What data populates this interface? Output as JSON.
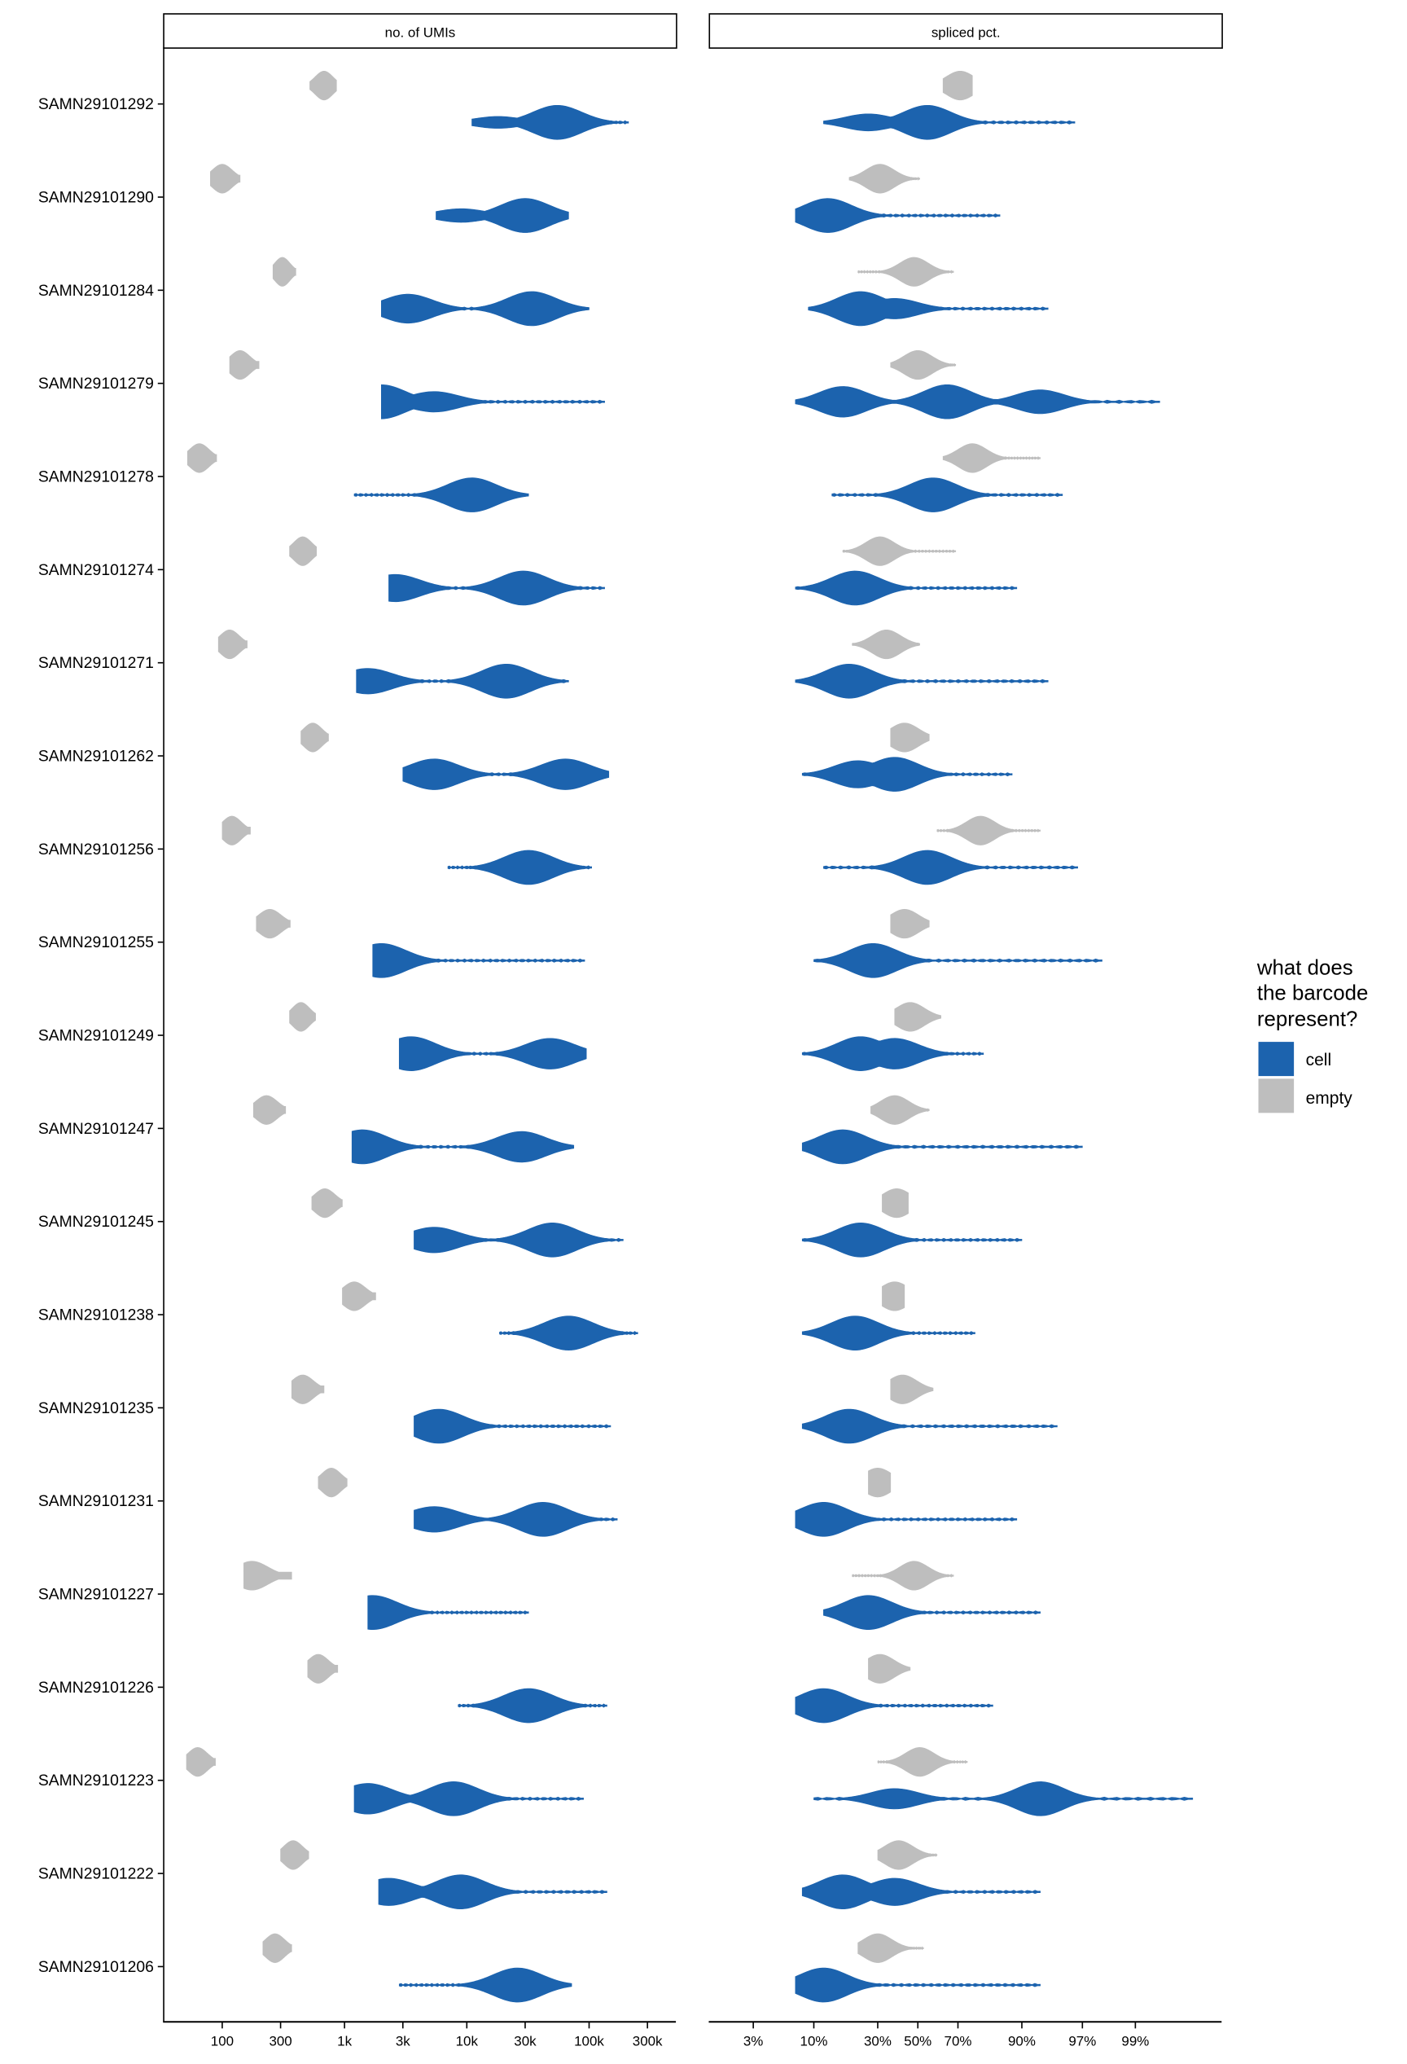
{
  "chart_data": {
    "type": "violin",
    "panels": [
      {
        "title": "no. of UMIs",
        "scale": "log10",
        "ticks": [
          100,
          300,
          1000,
          3000,
          10000,
          30000,
          100000,
          300000
        ],
        "tick_labels": [
          "100",
          "300",
          "1k",
          "3k",
          "10k",
          "30k",
          "100k",
          "300k"
        ],
        "range": [
          33,
          510000
        ]
      },
      {
        "title": "spliced pct.",
        "scale": "logit",
        "ticks": [
          3,
          10,
          30,
          50,
          70,
          90,
          97,
          99
        ],
        "tick_labels": [
          "3%",
          "10%",
          "30%",
          "50%",
          "70%",
          "90%",
          "97%",
          "99%"
        ],
        "range": [
          1.2,
          99.84
        ]
      }
    ],
    "legend": {
      "title_lines": [
        "what does",
        "the barcode",
        "represent?"
      ],
      "position": "right",
      "entries": [
        {
          "label": "cell",
          "color": "#1c63ae"
        },
        {
          "label": "empty",
          "color": "#bebebe"
        }
      ]
    },
    "note": "each violin given as [min, max, [[peak_value, relative_density], ...]]",
    "samples": [
      {
        "name": "SAMN29101292",
        "umi_empty": [
          520,
          860,
          [
            [
              680,
              1
            ]
          ]
        ],
        "umi_cell": [
          11000,
          210000,
          [
            [
              55000,
              1
            ],
            [
              18000,
              0.35
            ]
          ]
        ],
        "pct_empty": [
          63,
          76,
          [
            [
              71,
              1
            ]
          ]
        ],
        "pct_cell": [
          12,
          96.5,
          [
            [
              55,
              1
            ],
            [
              26,
              0.5
            ]
          ]
        ]
      },
      {
        "name": "SAMN29101290",
        "umi_empty": [
          80,
          140,
          [
            [
              100,
              1
            ]
          ]
        ],
        "umi_cell": [
          5600,
          68000,
          [
            [
              30000,
              1
            ],
            [
              9000,
              0.4
            ]
          ]
        ],
        "pct_empty": [
          19,
          51,
          [
            [
              31,
              1
            ]
          ]
        ],
        "pct_cell": [
          7,
          85,
          [
            [
              13,
              1
            ]
          ]
        ]
      },
      {
        "name": "SAMN29101284",
        "umi_empty": [
          260,
          400,
          [
            [
              310,
              1
            ]
          ]
        ],
        "umi_cell": [
          2000,
          100000,
          [
            [
              3300,
              0.85
            ],
            [
              34000,
              1
            ]
          ]
        ],
        "pct_empty": [
          22,
          68,
          [
            [
              48,
              1
            ]
          ]
        ],
        "pct_cell": [
          9,
          94,
          [
            [
              23,
              1
            ],
            [
              38,
              0.6
            ]
          ]
        ]
      },
      {
        "name": "SAMN29101279",
        "umi_empty": [
          115,
          200,
          [
            [
              140,
              1
            ]
          ]
        ],
        "umi_cell": [
          2000,
          134000,
          [
            [
              2000,
              1
            ],
            [
              5400,
              0.6
            ]
          ]
        ],
        "pct_empty": [
          36,
          69,
          [
            [
              50,
              1
            ]
          ]
        ],
        "pct_cell": [
          7,
          99.4,
          [
            [
              17,
              0.9
            ],
            [
              65,
              1
            ],
            [
              93,
              0.7
            ]
          ]
        ]
      },
      {
        "name": "SAMN29101278",
        "umi_empty": [
          52,
          90,
          [
            [
              65,
              1
            ]
          ]
        ],
        "umi_cell": [
          1200,
          32000,
          [
            [
              11000,
              1
            ]
          ]
        ],
        "pct_empty": [
          63,
          93,
          [
            [
              76,
              1
            ]
          ]
        ],
        "pct_cell": [
          14,
          95.5,
          [
            [
              58,
              1
            ]
          ]
        ]
      },
      {
        "name": "SAMN29101274",
        "umi_empty": [
          355,
          590,
          [
            [
              455,
              1
            ]
          ]
        ],
        "umi_cell": [
          2300,
          134000,
          [
            [
              2600,
              0.8
            ],
            [
              29000,
              1
            ]
          ]
        ],
        "pct_empty": [
          17,
          69,
          [
            [
              31,
              1
            ]
          ]
        ],
        "pct_cell": [
          7,
          89,
          [
            [
              21,
              1
            ]
          ]
        ]
      },
      {
        "name": "SAMN29101271",
        "umi_empty": [
          93,
          160,
          [
            [
              115,
              1
            ]
          ]
        ],
        "umi_cell": [
          1250,
          68000,
          [
            [
              1550,
              0.75
            ],
            [
              21000,
              1
            ]
          ]
        ],
        "pct_empty": [
          20,
          51,
          [
            [
              34,
              1
            ]
          ]
        ],
        "pct_cell": [
          7,
          94,
          [
            [
              19,
              1
            ]
          ]
        ]
      },
      {
        "name": "SAMN29101262",
        "umi_empty": [
          440,
          740,
          [
            [
              550,
              1
            ]
          ]
        ],
        "umi_cell": [
          3000,
          145000,
          [
            [
              5400,
              0.9
            ],
            [
              64000,
              0.9
            ]
          ]
        ],
        "pct_empty": [
          36,
          56,
          [
            [
              43,
              1
            ]
          ]
        ],
        "pct_cell": [
          8,
          88,
          [
            [
              22,
              0.8
            ],
            [
              38,
              1
            ]
          ]
        ]
      },
      {
        "name": "SAMN29101256",
        "umi_empty": [
          100,
          170,
          [
            [
              120,
              1
            ]
          ]
        ],
        "umi_cell": [
          7000,
          105000,
          [
            [
              32000,
              1
            ]
          ]
        ],
        "pct_empty": [
          60,
          93,
          [
            [
              79,
              1
            ]
          ]
        ],
        "pct_cell": [
          12,
          96.7,
          [
            [
              55,
              1
            ]
          ]
        ]
      },
      {
        "name": "SAMN29101255",
        "umi_empty": [
          190,
          360,
          [
            [
              245,
              1
            ]
          ]
        ],
        "umi_cell": [
          1700,
          92000,
          [
            [
              2000,
              1
            ]
          ]
        ],
        "pct_empty": [
          36,
          56,
          [
            [
              43,
              1
            ]
          ]
        ],
        "pct_cell": [
          10,
          98,
          [
            [
              28,
              1
            ]
          ]
        ]
      },
      {
        "name": "SAMN29101249",
        "umi_empty": [
          355,
          580,
          [
            [
              440,
              1
            ]
          ]
        ],
        "umi_cell": [
          2800,
          95000,
          [
            [
              3500,
              1
            ],
            [
              48000,
              0.9
            ]
          ]
        ],
        "pct_empty": [
          38,
          62,
          [
            [
              46,
              1
            ]
          ]
        ],
        "pct_cell": [
          8,
          80,
          [
            [
              23,
              1
            ],
            [
              38,
              0.9
            ]
          ]
        ]
      },
      {
        "name": "SAMN29101247",
        "umi_empty": [
          180,
          330,
          [
            [
              230,
              1
            ]
          ]
        ],
        "umi_cell": [
          1150,
          75000,
          [
            [
              1400,
              1
            ],
            [
              28000,
              0.9
            ]
          ]
        ],
        "pct_empty": [
          27,
          56,
          [
            [
              38,
              1
            ]
          ]
        ],
        "pct_cell": [
          8,
          97,
          [
            [
              17,
              1
            ]
          ]
        ]
      },
      {
        "name": "SAMN29101245",
        "umi_empty": [
          540,
          960,
          [
            [
              690,
              1
            ]
          ]
        ],
        "umi_cell": [
          3700,
          190000,
          [
            [
              5400,
              0.75
            ],
            [
              50000,
              1
            ]
          ]
        ],
        "pct_empty": [
          32,
          45,
          [
            [
              39,
              1
            ]
          ]
        ],
        "pct_cell": [
          8,
          90,
          [
            [
              23,
              1
            ]
          ]
        ]
      },
      {
        "name": "SAMN29101238",
        "umi_empty": [
          960,
          1800,
          [
            [
              1200,
              1
            ]
          ]
        ],
        "umi_cell": [
          18500,
          250000,
          [
            [
              68000,
              1
            ]
          ]
        ],
        "pct_empty": [
          32,
          43,
          [
            [
              38,
              1
            ]
          ]
        ],
        "pct_cell": [
          8,
          77,
          [
            [
              21,
              1
            ]
          ]
        ]
      },
      {
        "name": "SAMN29101235",
        "umi_empty": [
          370,
          680,
          [
            [
              455,
              1
            ]
          ]
        ],
        "umi_cell": [
          3700,
          150000,
          [
            [
              5900,
              1
            ]
          ]
        ],
        "pct_empty": [
          36,
          58,
          [
            [
              42,
              1
            ]
          ]
        ],
        "pct_cell": [
          8,
          95,
          [
            [
              19,
              1
            ]
          ]
        ]
      },
      {
        "name": "SAMN29101231",
        "umi_empty": [
          610,
          1050,
          [
            [
              780,
              1
            ]
          ]
        ],
        "umi_cell": [
          3700,
          170000,
          [
            [
              5400,
              0.75
            ],
            [
              42000,
              1
            ]
          ]
        ],
        "pct_empty": [
          26,
          36,
          [
            [
              30,
              1
            ]
          ]
        ],
        "pct_cell": [
          7,
          89,
          [
            [
              12,
              1
            ]
          ]
        ]
      },
      {
        "name": "SAMN29101227",
        "umi_empty": [
          150,
          370,
          [
            [
              175,
              1
            ]
          ]
        ],
        "umi_cell": [
          1550,
          32000,
          [
            [
              1700,
              1
            ]
          ]
        ],
        "pct_empty": [
          20,
          68,
          [
            [
              48,
              1
            ]
          ]
        ],
        "pct_cell": [
          12,
          93,
          [
            [
              26,
              1
            ]
          ]
        ]
      },
      {
        "name": "SAMN29101226",
        "umi_empty": [
          500,
          880,
          [
            [
              610,
              1
            ]
          ]
        ],
        "umi_cell": [
          8500,
          140000,
          [
            [
              32000,
              1
            ]
          ]
        ],
        "pct_empty": [
          26,
          46,
          [
            [
              31,
              1
            ]
          ]
        ],
        "pct_cell": [
          7,
          83,
          [
            [
              12,
              1
            ]
          ]
        ]
      },
      {
        "name": "SAMN29101223",
        "umi_empty": [
          51,
          88,
          [
            [
              63,
              1
            ]
          ]
        ],
        "umi_cell": [
          1200,
          90000,
          [
            [
              1550,
              0.9
            ],
            [
              7800,
              1
            ]
          ]
        ],
        "pct_empty": [
          30,
          74,
          [
            [
              51,
              1
            ]
          ]
        ],
        "pct_cell": [
          10,
          99.7,
          [
            [
              38,
              0.6
            ],
            [
              93,
              1
            ]
          ]
        ]
      },
      {
        "name": "SAMN29101222",
        "umi_empty": [
          300,
          510,
          [
            [
              380,
              1
            ]
          ]
        ],
        "umi_cell": [
          1900,
          140000,
          [
            [
              2300,
              0.8
            ],
            [
              8900,
              1
            ]
          ]
        ],
        "pct_empty": [
          30,
          60,
          [
            [
              40,
              1
            ]
          ]
        ],
        "pct_cell": [
          8,
          93,
          [
            [
              17,
              1
            ],
            [
              38,
              0.8
            ]
          ]
        ]
      },
      {
        "name": "SAMN29101206",
        "umi_empty": [
          215,
          370,
          [
            [
              270,
              1
            ]
          ]
        ],
        "umi_cell": [
          2800,
          72000,
          [
            [
              26000,
              1
            ]
          ]
        ],
        "pct_empty": [
          22,
          53,
          [
            [
              30,
              1
            ]
          ]
        ],
        "pct_cell": [
          7,
          93,
          [
            [
              12,
              1
            ]
          ]
        ]
      }
    ]
  }
}
